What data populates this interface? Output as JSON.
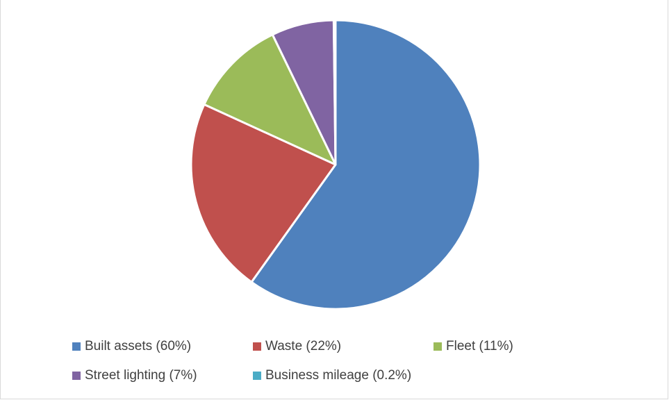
{
  "chart_data": {
    "type": "pie",
    "title": "",
    "slices": [
      {
        "label": "Built assets (60%)",
        "value": 60,
        "color": "#4F81BD"
      },
      {
        "label": "Waste (22%)",
        "value": 22,
        "color": "#C0504D"
      },
      {
        "label": "Fleet (11%)",
        "value": 11,
        "color": "#9BBB59"
      },
      {
        "label": "Street lighting (7%)",
        "value": 7,
        "color": "#8064A2"
      },
      {
        "label": "Business mileage (0.2%)",
        "value": 0.2,
        "color": "#4BACC6"
      }
    ],
    "legend_position": "bottom",
    "start_angle_deg": 0,
    "direction": "clockwise"
  }
}
